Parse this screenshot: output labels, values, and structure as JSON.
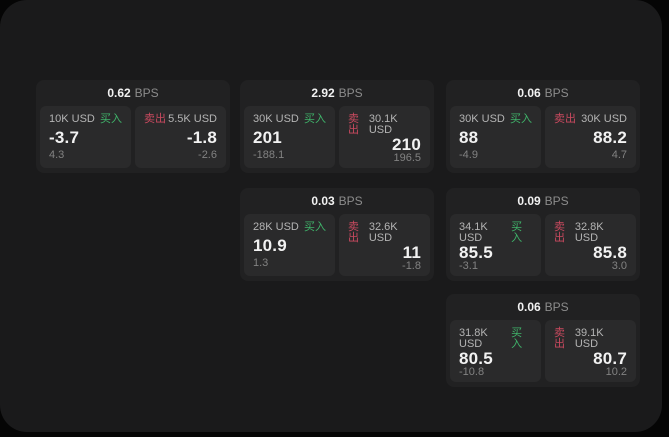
{
  "labels": {
    "bps_unit": "BPS",
    "buy": "买入",
    "sell": "卖出"
  },
  "colors": {
    "buy": "#3fb36a",
    "sell": "#c9495f",
    "window_bg": "#1a1a1b",
    "card_bg": "#212122",
    "panel_bg": "#2a2a2b"
  },
  "cards": [
    {
      "bps": "0.62",
      "buy": {
        "amount": "10K USD",
        "price": "-3.7",
        "delta": "4.3"
      },
      "sell": {
        "amount": "5.5K USD",
        "price": "-1.8",
        "delta": "-2.6"
      }
    },
    {
      "bps": "2.92",
      "buy": {
        "amount": "30K USD",
        "price": "201",
        "delta": "-188.1"
      },
      "sell": {
        "amount": "30.1K USD",
        "price": "210",
        "delta": "196.5"
      }
    },
    {
      "bps": "0.06",
      "buy": {
        "amount": "30K USD",
        "price": "88",
        "delta": "-4.9"
      },
      "sell": {
        "amount": "30K USD",
        "price": "88.2",
        "delta": "4.7"
      }
    },
    {
      "bps": "0.03",
      "buy": {
        "amount": "28K USD",
        "price": "10.9",
        "delta": "1.3"
      },
      "sell": {
        "amount": "32.6K USD",
        "price": "11",
        "delta": "-1.8"
      }
    },
    {
      "bps": "0.09",
      "buy": {
        "amount": "34.1K USD",
        "price": "85.5",
        "delta": "-3.1"
      },
      "sell": {
        "amount": "32.8K USD",
        "price": "85.8",
        "delta": "3.0"
      }
    },
    {
      "bps": "0.06",
      "buy": {
        "amount": "31.8K USD",
        "price": "80.5",
        "delta": "-10.8"
      },
      "sell": {
        "amount": "39.1K USD",
        "price": "80.7",
        "delta": "10.2"
      }
    }
  ]
}
